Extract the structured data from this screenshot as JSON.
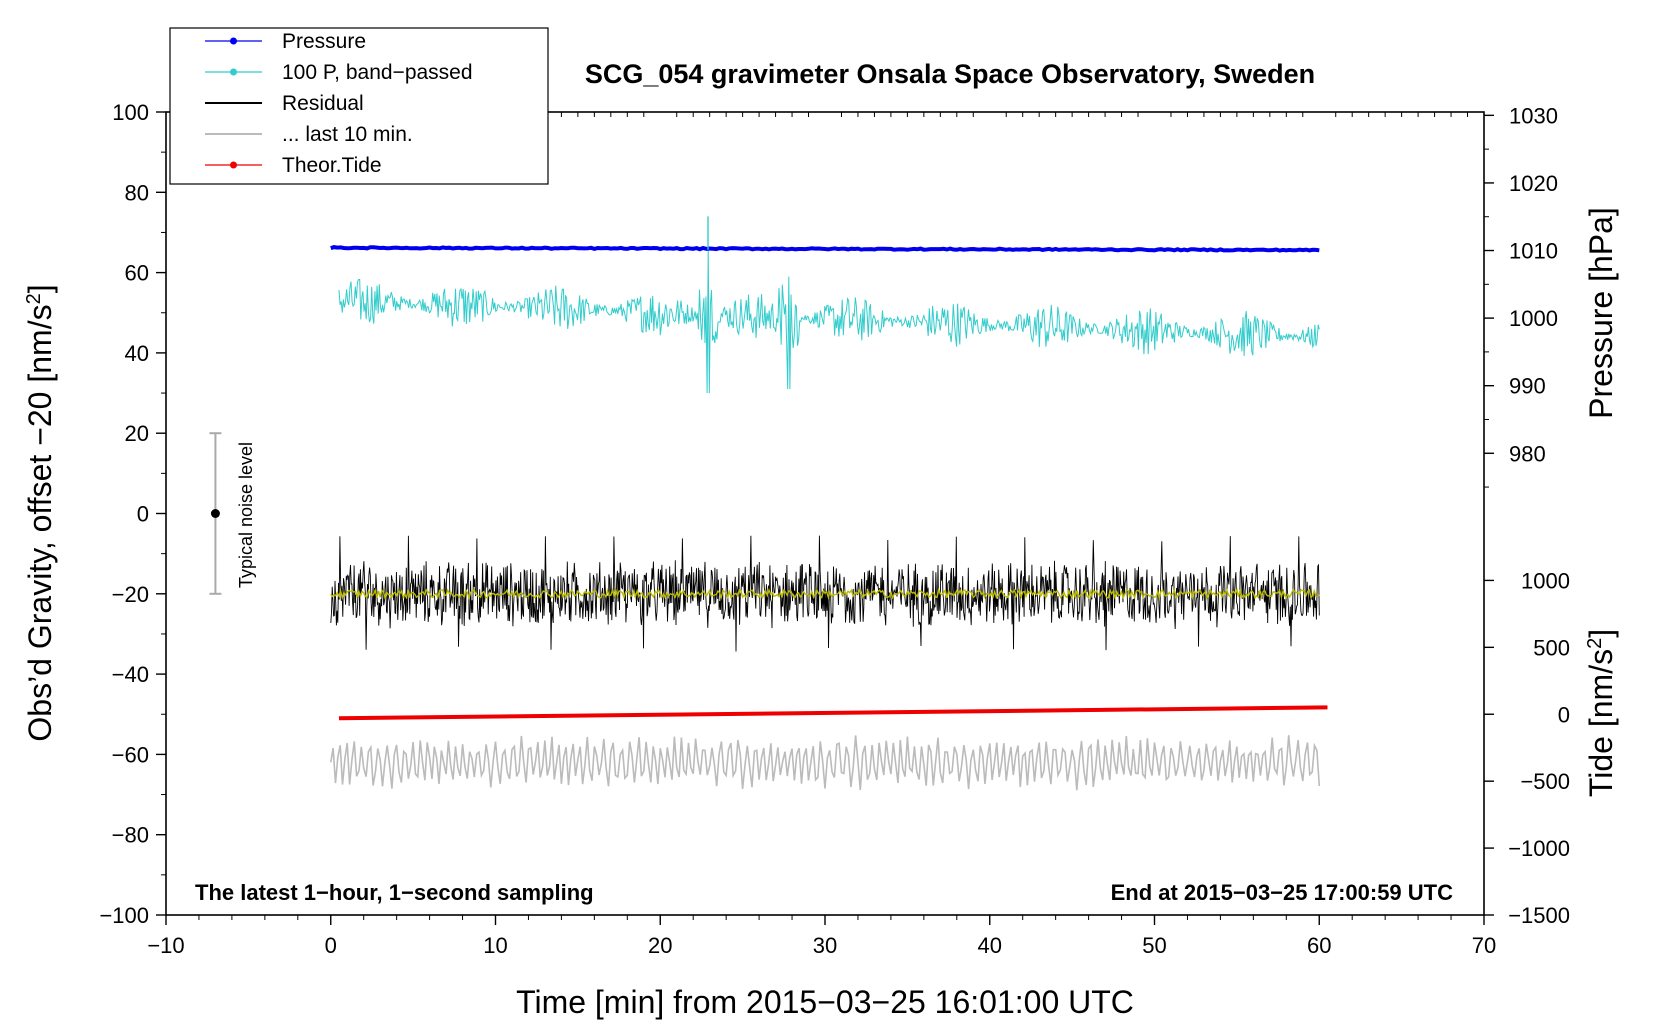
{
  "chart_data": {
    "type": "line",
    "title": "SCG_054 gravimeter Onsala Space Observatory, Sweden",
    "xlabel": "Time [min] from 2015−03−25 16:01:00 UTC",
    "ylabel_left": "Obs’d Gravity, offset −20 [nm/s²]",
    "ylabel_right_top": "Pressure [hPa]",
    "ylabel_right_bottom": "Tide [nm/s²]",
    "xlim": [
      -10,
      70
    ],
    "ylim_left": [
      -100,
      100
    ],
    "x_ticks": [
      {
        "value": -10,
        "label": "−10"
      },
      {
        "value": 0,
        "label": "0"
      },
      {
        "value": 10,
        "label": "10"
      },
      {
        "value": 20,
        "label": "20"
      },
      {
        "value": 30,
        "label": "30"
      },
      {
        "value": 40,
        "label": "40"
      },
      {
        "value": 50,
        "label": "50"
      },
      {
        "value": 60,
        "label": "60"
      },
      {
        "value": 70,
        "label": "70"
      }
    ],
    "y_ticks_left": [
      {
        "value": 100,
        "label": "100"
      },
      {
        "value": 80,
        "label": "80"
      },
      {
        "value": 60,
        "label": "60"
      },
      {
        "value": 40,
        "label": "40"
      },
      {
        "value": 20,
        "label": "20"
      },
      {
        "value": 0,
        "label": "0"
      },
      {
        "value": -20,
        "label": "−20"
      },
      {
        "value": -40,
        "label": "−40"
      },
      {
        "value": -60,
        "label": "−60"
      },
      {
        "value": -80,
        "label": "−80"
      },
      {
        "value": -100,
        "label": "−100"
      }
    ],
    "pressure_axis": {
      "mapping": {
        "hpa_a": 1010,
        "left_a": 65.5,
        "hpa_b": 980,
        "left_b": 15
      },
      "ticks": [
        {
          "value": 1030,
          "label": "1030"
        },
        {
          "value": 1020,
          "label": "1020"
        },
        {
          "value": 1010,
          "label": "1010"
        },
        {
          "value": 1000,
          "label": "1000"
        },
        {
          "value": 990,
          "label": "990"
        },
        {
          "value": 980,
          "label": "980"
        }
      ]
    },
    "tide_axis": {
      "mapping": {
        "tide_a": 0,
        "left_a": -50,
        "tide_b": -1500,
        "left_b": -100
      },
      "ticks": [
        {
          "value": 1000,
          "label": "1000"
        },
        {
          "value": 500,
          "label": "500"
        },
        {
          "value": 0,
          "label": "0"
        },
        {
          "value": -500,
          "label": "−500"
        },
        {
          "value": -1000,
          "label": "−1000"
        },
        {
          "value": -1500,
          "label": "−1500"
        }
      ]
    },
    "series": [
      {
        "name": "Pressure",
        "color": "#0000ee",
        "x_range": [
          0,
          60
        ],
        "start": 66.2,
        "end": 65.6,
        "spike_at": 22.9,
        "spike_to": 74
      },
      {
        "name": "100 P, band−passed",
        "color": "#33cccc",
        "x_range": [
          0.5,
          60
        ],
        "mean_start": 53,
        "mean_end": 44,
        "noise_amplitude": 6,
        "spikes": [
          {
            "x": 22.9,
            "low": 30,
            "high": 66
          },
          {
            "x": 27.8,
            "low": 31,
            "high": 59
          }
        ]
      },
      {
        "name": "Residual",
        "color": "#000000",
        "x_range": [
          0,
          60
        ],
        "mean": -20,
        "noise_amplitude": 9,
        "min": -33,
        "max": -7
      },
      {
        "name": "Residual smoothed",
        "color": "#bbbb00",
        "x_range": [
          0,
          60
        ],
        "mean": -20,
        "noise_amplitude": 1
      },
      {
        "name": "... last 10 min.",
        "color": "#bbbbbb",
        "x_range": [
          0,
          60
        ],
        "mean": -62,
        "amplitude": 7
      },
      {
        "name": "Theor.Tide",
        "color": "#ee0000",
        "x_range": [
          0.5,
          60.5
        ],
        "start": -51,
        "end": -48.3
      }
    ],
    "legend": {
      "placement": "top-left",
      "entries": [
        {
          "label": "Pressure",
          "color": "#0000ee",
          "marker": true
        },
        {
          "label": "100 P, band−passed",
          "color": "#33cccc",
          "marker": true
        },
        {
          "label": "Residual",
          "color": "#000000",
          "marker": false
        },
        {
          "label": "... last 10 min.",
          "color": "#bbbbbb",
          "marker": false
        },
        {
          "label": "Theor.Tide",
          "color": "#ee0000",
          "marker": true
        }
      ]
    },
    "noise_indicator": {
      "x": -7,
      "center": 0,
      "low": -20,
      "high": 20,
      "label": "Typical noise level"
    },
    "annotations": {
      "bottom_left": "The latest 1−hour, 1−second sampling",
      "bottom_right": "End at 2015−03−25 17:00:59 UTC"
    }
  }
}
